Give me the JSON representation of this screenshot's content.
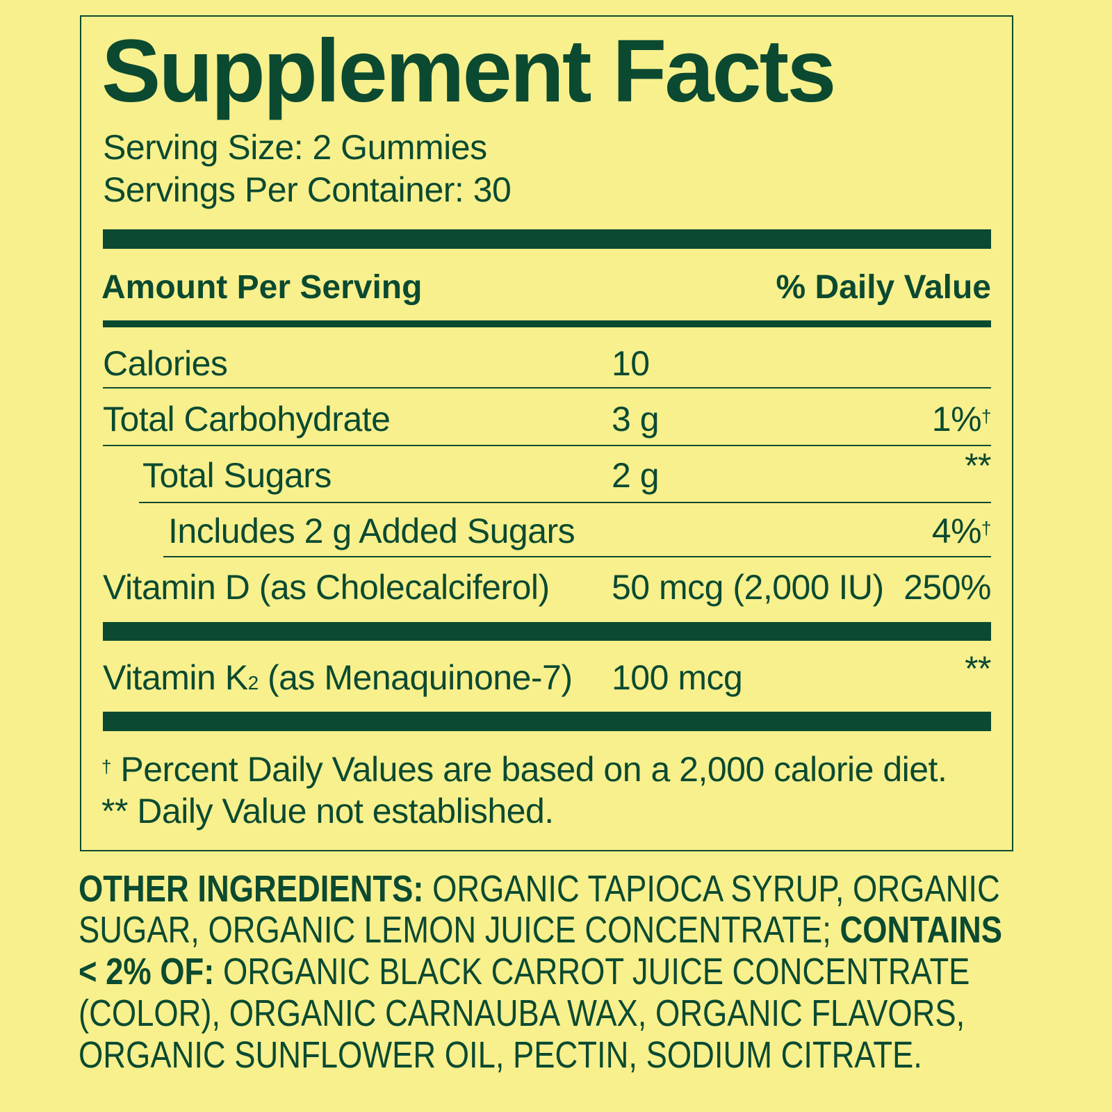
{
  "title": "Supplement Facts",
  "serving_size": "Serving Size: 2 Gummies",
  "servings_per_container": "Servings Per Container: 30",
  "header": {
    "amount": "Amount Per Serving",
    "dv": "% Daily Value"
  },
  "rows": [
    {
      "name": "Calories",
      "amount": "10",
      "dv": ""
    },
    {
      "name": "Total Carbohydrate",
      "amount": "3 g",
      "dv": "1%",
      "dv_mark": "†"
    },
    {
      "name": "Total Sugars",
      "amount": "2 g",
      "dv": "**"
    },
    {
      "name": "Includes 2 g Added Sugars",
      "amount": "",
      "dv": "4%",
      "dv_mark": "†"
    },
    {
      "name": "Vitamin D (as Cholecalciferol)",
      "amount": "50 mcg (2,000 IU)",
      "dv": "250%"
    },
    {
      "name_pre": "Vitamin K",
      "name_sub": "2",
      "name_post": " (as Menaquinone-7)",
      "amount": "100 mcg",
      "dv": "**"
    }
  ],
  "footnotes": {
    "dagger_mark": "†",
    "dagger": " Percent Daily Values are based on a 2,000 calorie diet.",
    "stars": "** Daily Value not established."
  },
  "ingredients": {
    "l1_bold": "OTHER INGREDIENTS:",
    "l1": " ORGANIC TAPIOCA SYRUP, ORGANIC",
    "l2": "SUGAR, ORGANIC LEMON JUICE CONCENTRATE; ",
    "l2_bold": "CONTAINS",
    "l3_bold": "< 2% OF:",
    "l3": " ORGANIC BLACK CARROT JUICE CONCENTRATE",
    "l4": "(COLOR), ORGANIC CARNAUBA WAX, ORGANIC FLAVORS,",
    "l5": "ORGANIC SUNFLOWER OIL, PECTIN, SODIUM CITRATE."
  },
  "colors": {
    "background": "#f8f08d",
    "ink": "#0b4a31"
  }
}
